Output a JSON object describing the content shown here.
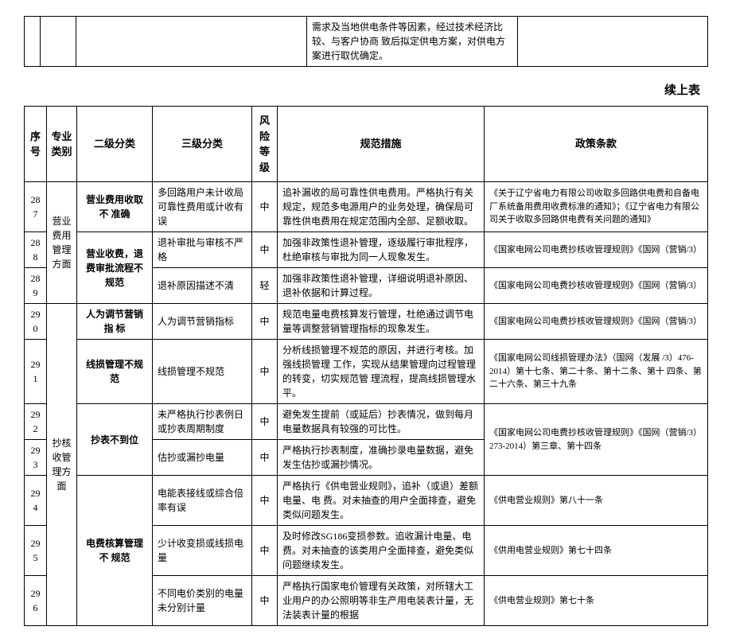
{
  "top_fragment": {
    "text": "需求及当地供电条件等因素，经过技术经济比较、与客户协商 致后拟定供电方案，对供电方案进行取优确定。"
  },
  "continue_label": "续上表",
  "headers": {
    "seq": "序号",
    "category": "专业类别",
    "level2": "二级分类",
    "level3": "三级分类",
    "risk": "风险等级",
    "measure": "规范措施",
    "policy": "政策条款"
  },
  "category1": "营业 费用 管理 方面",
  "category2": "抄核 收管 理方面",
  "rows": [
    {
      "seq": "287",
      "level2": "营业费用收取不 准确",
      "level3": "多回路用户未计收局可靠性费用或计收有误",
      "risk": "中",
      "measure": "追补漏收的局可靠性供电费用。严格执行有关规定，规范多电源用户的业务处理，确保局可靠性供电费用在规定范围内全部、足额收取。",
      "policy": "《关于辽宁省电力有限公司收取多回路供电费和自备电厂系统备用费用收费标准的通知》；《辽宁省电力有限公司关于收取多回路供电费有关问题的通知》"
    },
    {
      "seq": "288",
      "level2": "营业收费，退费审批流程不规范",
      "level3": "退补审批与审核不严格",
      "risk": "中",
      "measure": "加强非政策性退补管理，逐级履行审批程序，杜绝审核与审批为同一人现象发生。",
      "policy": "《国家电网公司电费抄核收管理规则》《国网（营销/3）"
    },
    {
      "seq": "289",
      "level3": "退补原因描述不清",
      "risk": "轻",
      "measure": "加强非政策性退补管理，详细说明退补原因、退补依据和计算过程。",
      "policy": "《国家电网公司电费抄核收管理规则》《国网（营销/3）"
    },
    {
      "seq": "290",
      "level2": "人为调节营销指 标",
      "level3": "人为调节营销指标",
      "risk": "中",
      "measure": "规范电量电费核算发行管理，杜绝通过调节电量等调整营销管理指标的现象发生。",
      "policy": "《国家电网公司电费抄核收管理规则》《国网（营销/3）"
    },
    {
      "seq": "291",
      "level2": "线损管理不规范",
      "level3": "线损管理不规范",
      "risk": "中",
      "measure": "分析线损管理不规范的原因，并进行考核。加强线损管理 工作，实现从结果管理向过程管理的转变，切实规范管 理流程，提高线损管理水平。",
      "policy": "《国家电网公司线损管理办法》（国网（发展 /3）476-2014）第十七条、第二十条、第十二条、第十 四条、第二十六条、第三十九条"
    },
    {
      "seq": "292",
      "level2": "抄表不到位",
      "level3": "未严格执行抄表例日或抄表周期制度",
      "risk": "中",
      "measure": "避免发生提前（或延后）抄表情况，做到每月电量数据具有较强的可比性。",
      "policy": "《国家电网公司电费抄核收管理规则》《国网（营销/3）273-2014）第三章、第十四条"
    },
    {
      "seq": "293",
      "level3": "估抄或漏抄电量",
      "risk": "中",
      "measure": "严格执行抄表制度，准确抄录电量数据，避免发生估抄或漏抄情况。",
      "policy": ""
    },
    {
      "seq": "294",
      "level2": "电费核算管理不 规范",
      "level3": "电能表接线或综合倍率有误",
      "risk": "中",
      "measure": "严格执行《供电营业规则》，追补（或退）差额电量、电 费。对未抽查的用户全面排查，避免类似问题发生。",
      "policy": "《供电营业规则》第八十一条"
    },
    {
      "seq": "295",
      "level3": "少计收变损或线损电量",
      "risk": "中",
      "measure": "及时修改SG186变损参数。追收漏计电量、电费。对未抽查的该类用户全面排查，避免类似问题继续发生。",
      "policy": "《供用电营业规则》第七十四条"
    },
    {
      "seq": "296",
      "level3": "不同电价类别的电量未分别计量",
      "risk": "中",
      "measure": "严格执行国家电价管理有关政策，对所辖大工业用户的办公照明等非生产用电装表计量，无法装表计量的根据",
      "policy": "《供电营业规则》第七十条"
    }
  ]
}
